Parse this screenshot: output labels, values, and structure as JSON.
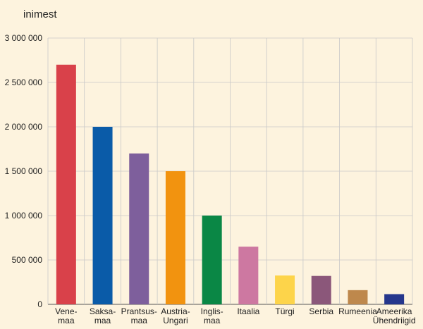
{
  "chart_data": {
    "type": "bar",
    "unit_label": "inimest",
    "ylim": [
      0,
      3000000
    ],
    "yticks": [
      0,
      500000,
      1000000,
      1500000,
      2000000,
      2500000,
      3000000
    ],
    "ytick_labels": [
      "0",
      "500 000",
      "1 000 000",
      "1 500 000",
      "2 000 000",
      "2 500 000",
      "3 000 000"
    ],
    "grid": true,
    "categories": [
      [
        "Vene-",
        "maa"
      ],
      [
        "Saksa-",
        "maa"
      ],
      [
        "Prantsus-",
        "maa"
      ],
      [
        "Austria-",
        "Ungari"
      ],
      [
        "Inglis-",
        "maa"
      ],
      [
        "Itaalia"
      ],
      [
        "Türgi"
      ],
      [
        "Serbia"
      ],
      [
        "Rumeenia"
      ],
      [
        "Ameerika",
        "Ühendriigid"
      ]
    ],
    "values": [
      2700000,
      2000000,
      1700000,
      1500000,
      1000000,
      650000,
      325000,
      320000,
      160000,
      115000
    ],
    "colors": [
      "#d9414a",
      "#0a5ba8",
      "#7e5f9c",
      "#f2930f",
      "#0a8745",
      "#cd78a1",
      "#fdd44a",
      "#8b577a",
      "#be884c",
      "#26378c"
    ]
  }
}
